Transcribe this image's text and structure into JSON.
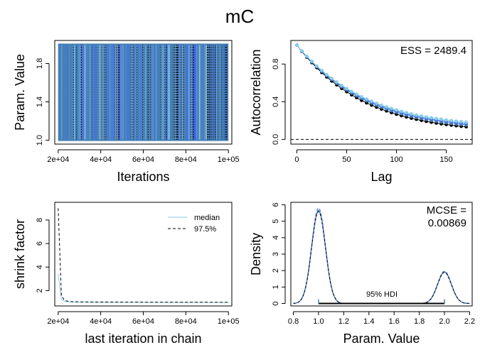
{
  "page": {
    "title": "mC"
  },
  "colors": {
    "chain1": "#87CEEB",
    "chain2": "#4682B4",
    "chain3": "#4169E1",
    "chain4": "#000000",
    "hdi": "#4682B4"
  },
  "chart_data": [
    {
      "type": "line",
      "panel": "trace",
      "xlabel": "Iterations",
      "ylabel": "Param. Value",
      "xlim": [
        20000,
        100000
      ],
      "ylim": [
        1.0,
        2.0
      ],
      "xticks": [
        20000,
        40000,
        60000,
        80000,
        100000
      ],
      "xticklabels": [
        "2e+04",
        "4e+04",
        "6e+04",
        "8e+04",
        "1e+05"
      ],
      "yticks": [
        1.0,
        1.4,
        1.8
      ],
      "yticklabels": [
        "1.0",
        "1.4",
        "1.8"
      ],
      "states": [
        1.0,
        2.0
      ]
    },
    {
      "type": "scatter",
      "panel": "autocorrelation",
      "xlabel": "Lag",
      "ylabel": "Autocorrelation",
      "xlim": [
        0,
        172
      ],
      "ylim": [
        0,
        1
      ],
      "xticks": [
        0,
        50,
        100,
        150
      ],
      "xticklabels": [
        "0",
        "50",
        "100",
        "150"
      ],
      "yticks": [
        0.0,
        0.4,
        0.8
      ],
      "yticklabels": [
        "0.0",
        "0.4",
        "0.8"
      ],
      "annotation": "ESS = 2489.4",
      "lags": [
        0,
        5,
        10,
        15,
        20,
        25,
        30,
        35,
        40,
        45,
        50,
        55,
        60,
        65,
        70,
        75,
        80,
        85,
        90,
        95,
        100,
        105,
        110,
        115,
        120,
        125,
        130,
        135,
        140,
        145,
        150,
        155,
        160,
        165,
        170
      ],
      "series": [
        {
          "values": [
            1.0,
            0.939,
            0.882,
            0.829,
            0.779,
            0.732,
            0.688,
            0.647,
            0.609,
            0.573,
            0.54,
            0.509,
            0.48,
            0.453,
            0.428,
            0.405,
            0.383,
            0.363,
            0.345,
            0.328,
            0.312,
            0.297,
            0.284,
            0.271,
            0.259,
            0.249,
            0.239,
            0.23,
            0.221,
            0.214,
            0.206,
            0.2,
            0.194,
            0.188,
            0.183
          ]
        },
        {
          "values": [
            1.0,
            0.937,
            0.878,
            0.823,
            0.771,
            0.722,
            0.677,
            0.635,
            0.596,
            0.559,
            0.525,
            0.493,
            0.463,
            0.435,
            0.409,
            0.385,
            0.363,
            0.342,
            0.323,
            0.305,
            0.289,
            0.273,
            0.259,
            0.246,
            0.234,
            0.223,
            0.212,
            0.203,
            0.194,
            0.186,
            0.178,
            0.171,
            0.165,
            0.159,
            0.154
          ]
        },
        {
          "values": [
            1.0,
            0.938,
            0.88,
            0.826,
            0.775,
            0.727,
            0.683,
            0.641,
            0.602,
            0.566,
            0.533,
            0.501,
            0.472,
            0.444,
            0.419,
            0.395,
            0.373,
            0.353,
            0.334,
            0.317,
            0.3,
            0.285,
            0.271,
            0.258,
            0.246,
            0.235,
            0.225,
            0.216,
            0.207,
            0.199,
            0.192,
            0.185,
            0.179,
            0.173,
            0.168
          ]
        },
        {
          "values": [
            1.0,
            0.934,
            0.872,
            0.815,
            0.761,
            0.71,
            0.663,
            0.619,
            0.579,
            0.541,
            0.506,
            0.473,
            0.443,
            0.414,
            0.388,
            0.364,
            0.342,
            0.321,
            0.302,
            0.284,
            0.267,
            0.252,
            0.238,
            0.225,
            0.213,
            0.202,
            0.191,
            0.182,
            0.173,
            0.165,
            0.158,
            0.151,
            0.145,
            0.139,
            0.134
          ]
        }
      ]
    },
    {
      "type": "line",
      "panel": "gelman-shrink",
      "xlabel": "last iteration in chain",
      "ylabel": "shrink factor",
      "xlim": [
        20000,
        100000
      ],
      "ylim": [
        1,
        9.2
      ],
      "xticks": [
        20000,
        40000,
        60000,
        80000,
        100000
      ],
      "xticklabels": [
        "2e+04",
        "4e+04",
        "6e+04",
        "8e+04",
        "1e+05"
      ],
      "yticks": [
        2,
        4,
        6,
        8
      ],
      "yticklabels": [
        "2",
        "4",
        "6",
        "8"
      ],
      "legend": {
        "position": "top-right",
        "entries": [
          "median",
          "97.5%"
        ]
      },
      "series": [
        {
          "name": "median",
          "x": [
            20000,
            21500,
            23000,
            26000,
            30000,
            40000,
            60000,
            80000,
            100000
          ],
          "values": [
            3.4,
            1.25,
            1.08,
            1.03,
            1.02,
            1.01,
            1.01,
            1.0,
            1.0
          ]
        },
        {
          "name": "97.5%",
          "x": [
            20000,
            21500,
            23000,
            26000,
            30000,
            40000,
            60000,
            80000,
            100000
          ],
          "values": [
            9.0,
            1.6,
            1.15,
            1.07,
            1.05,
            1.03,
            1.02,
            1.02,
            1.01
          ]
        }
      ]
    },
    {
      "type": "line",
      "panel": "density",
      "xlabel": "Param. Value",
      "ylabel": "Density",
      "xlim": [
        0.8,
        2.2
      ],
      "ylim": [
        0,
        6
      ],
      "xticks": [
        0.8,
        1.0,
        1.2,
        1.4,
        1.6,
        1.8,
        2.0,
        2.2
      ],
      "xticklabels": [
        "0.8",
        "1.0",
        "1.2",
        "1.4",
        "1.6",
        "1.8",
        "2.0",
        "2.2"
      ],
      "yticks": [
        0,
        1,
        2,
        3,
        4,
        5,
        6
      ],
      "yticklabels": [
        "0",
        "1",
        "2",
        "3",
        "4",
        "5",
        "6"
      ],
      "annotation": "MCSE =",
      "annotation_value": "0.00869",
      "hdi_label": "95% HDI",
      "hdi_marks": [
        1.0,
        2.0
      ],
      "modes": [
        {
          "center": 1.0,
          "peak": 5.7
        },
        {
          "center": 2.0,
          "peak": 1.93
        }
      ],
      "series": [
        {
          "peak_scale": 1.0
        },
        {
          "peak_scale": 0.99
        },
        {
          "peak_scale": 1.02
        },
        {
          "peak_scale": 0.98
        }
      ]
    }
  ]
}
